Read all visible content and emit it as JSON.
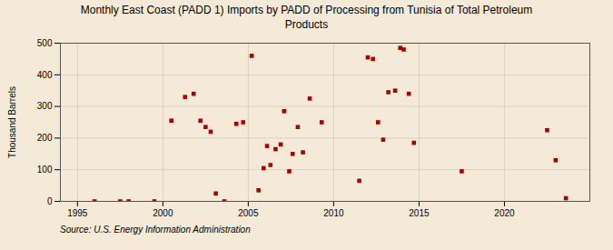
{
  "chart_data": {
    "type": "scatter",
    "title": "Monthly East Coast (PADD 1) Imports by PADD of Processing from Tunisia of Total Petroleum\nProducts",
    "ylabel": "Thousand Barrels",
    "source": "Source: U.S. Energy Information Administration",
    "color": "#aa0000",
    "marker": "square",
    "grid": true,
    "xlim": [
      1994,
      2025
    ],
    "ylim": [
      0,
      500
    ],
    "xticks": [
      1995,
      2000,
      2005,
      2010,
      2015,
      2020
    ],
    "yticks": [
      0,
      100,
      200,
      300,
      400,
      500
    ],
    "x": [
      1996.0,
      1997.5,
      1998.0,
      1999.5,
      2000.5,
      2001.3,
      2001.8,
      2002.2,
      2002.5,
      2002.8,
      2003.1,
      2003.6,
      2004.3,
      2004.7,
      2005.2,
      2005.6,
      2005.9,
      2006.1,
      2006.3,
      2006.6,
      2006.9,
      2007.1,
      2007.4,
      2007.6,
      2007.9,
      2008.2,
      2008.6,
      2009.3,
      2011.5,
      2012.0,
      2012.3,
      2012.6,
      2012.9,
      2013.2,
      2013.6,
      2013.9,
      2014.1,
      2014.4,
      2014.7,
      2017.5,
      2022.5,
      2023.0,
      2023.6
    ],
    "values": [
      0,
      0,
      0,
      0,
      255,
      330,
      340,
      255,
      235,
      220,
      25,
      0,
      245,
      250,
      460,
      35,
      105,
      175,
      115,
      165,
      180,
      285,
      95,
      150,
      235,
      155,
      325,
      250,
      65,
      455,
      450,
      250,
      195,
      345,
      350,
      485,
      480,
      340,
      185,
      95,
      225,
      130,
      10
    ]
  }
}
